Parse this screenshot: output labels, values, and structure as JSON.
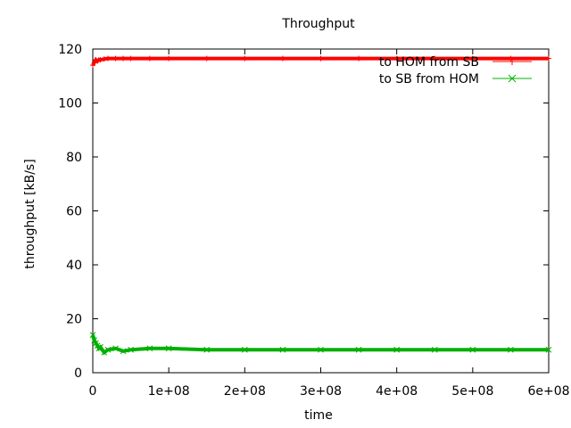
{
  "chart_data": {
    "type": "scatter",
    "title": "Throughput",
    "xlabel": "time",
    "ylabel": "throughput [kB/s]",
    "xlim": [
      0,
      600000000
    ],
    "ylim": [
      0,
      120
    ],
    "x_ticks": [
      0,
      100000000,
      200000000,
      300000000,
      400000000,
      500000000,
      600000000
    ],
    "x_tick_labels": [
      "0",
      "1e+08",
      "2e+08",
      "3e+08",
      "4e+08",
      "5e+08",
      "6e+08"
    ],
    "y_ticks": [
      0,
      20,
      40,
      60,
      80,
      100,
      120
    ],
    "y_tick_labels": [
      "0",
      "20",
      "40",
      "60",
      "80",
      "100",
      "120"
    ],
    "legend_position": "top-right",
    "grid": false,
    "series": [
      {
        "name": "to HOM from SB",
        "color": "#ff0000",
        "marker": "+",
        "x": [
          0,
          2000000,
          4000000,
          6000000,
          8000000,
          10000000,
          15000000,
          20000000,
          30000000,
          40000000,
          50000000,
          75000000,
          100000000,
          150000000,
          200000000,
          250000000,
          300000000,
          350000000,
          400000000,
          450000000,
          500000000,
          550000000,
          600000000
        ],
        "values": [
          114,
          115,
          116,
          115.5,
          116,
          116,
          116.3,
          116.5,
          116.5,
          116.5,
          116.5,
          116.5,
          116.5,
          116.5,
          116.5,
          116.5,
          116.5,
          116.5,
          116.5,
          116.5,
          116.5,
          116.5,
          116.5
        ]
      },
      {
        "name": "to SB from HOM",
        "color": "#00b000",
        "marker": "x",
        "x": [
          0,
          2000000,
          4000000,
          6000000,
          8000000,
          10000000,
          15000000,
          20000000,
          30000000,
          40000000,
          50000000,
          75000000,
          100000000,
          150000000,
          200000000,
          250000000,
          300000000,
          350000000,
          400000000,
          450000000,
          500000000,
          550000000,
          600000000
        ],
        "values": [
          14,
          12,
          11,
          10,
          9,
          9.5,
          7.5,
          8.5,
          9,
          8,
          8.5,
          9,
          9,
          8.5,
          8.5,
          8.5,
          8.5,
          8.5,
          8.5,
          8.5,
          8.5,
          8.5,
          8.5
        ]
      }
    ]
  }
}
